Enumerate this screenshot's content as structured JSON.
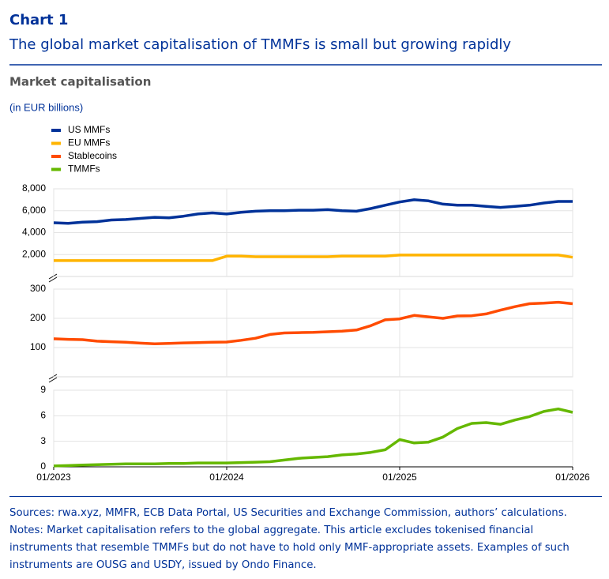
{
  "header": {
    "label": "Chart 1",
    "title": "The global market capitalisation of TMMFs is small but growing rapidly",
    "chart_title": "Market capitalisation",
    "units": "(in EUR billions)"
  },
  "chart_data": [
    {
      "type": "line",
      "grid": true,
      "x": [
        "01/2023",
        "02/2023",
        "03/2023",
        "04/2023",
        "05/2023",
        "06/2023",
        "07/2023",
        "08/2023",
        "09/2023",
        "10/2023",
        "11/2023",
        "12/2023",
        "01/2024",
        "02/2024",
        "03/2024",
        "04/2024",
        "05/2024",
        "06/2024",
        "07/2024",
        "08/2024",
        "09/2024",
        "10/2024",
        "11/2024",
        "12/2024",
        "01/2025",
        "02/2025",
        "03/2025",
        "04/2025",
        "05/2025",
        "06/2025",
        "07/2025",
        "08/2025",
        "09/2025",
        "10/2025",
        "11/2025",
        "12/2025",
        "01/2026"
      ],
      "xticks": [
        "01/2023",
        "01/2024",
        "01/2025",
        "01/2026"
      ],
      "ylim": [
        0,
        8000
      ],
      "yticks": [
        {
          "value": 2000,
          "label": "2,000"
        },
        {
          "value": 4000,
          "label": "4,000"
        },
        {
          "value": 6000,
          "label": "6,000"
        },
        {
          "value": 8000,
          "label": "8,000"
        }
      ],
      "series": [
        {
          "name": "US MMFs",
          "color": "#003299",
          "values": [
            4900,
            4850,
            4950,
            5000,
            5150,
            5200,
            5300,
            5400,
            5350,
            5500,
            5700,
            5800,
            5700,
            5850,
            5950,
            6000,
            6000,
            6050,
            6050,
            6100,
            6000,
            5950,
            6200,
            6500,
            6800,
            7000,
            6900,
            6600,
            6500,
            6500,
            6400,
            6300,
            6400,
            6500,
            6700,
            6850,
            6850
          ]
        },
        {
          "name": "EU MMFs",
          "color": "#ffb400",
          "values": [
            1450,
            1450,
            1450,
            1450,
            1450,
            1450,
            1450,
            1450,
            1450,
            1450,
            1450,
            1450,
            1850,
            1850,
            1800,
            1800,
            1800,
            1800,
            1800,
            1800,
            1850,
            1850,
            1850,
            1850,
            1950,
            1950,
            1950,
            1950,
            1950,
            1950,
            1950,
            1950,
            1950,
            1950,
            1950,
            1950,
            1750
          ]
        }
      ]
    },
    {
      "type": "line",
      "grid": true,
      "x": [
        "01/2023",
        "02/2023",
        "03/2023",
        "04/2023",
        "05/2023",
        "06/2023",
        "07/2023",
        "08/2023",
        "09/2023",
        "10/2023",
        "11/2023",
        "12/2023",
        "01/2024",
        "02/2024",
        "03/2024",
        "04/2024",
        "05/2024",
        "06/2024",
        "07/2024",
        "08/2024",
        "09/2024",
        "10/2024",
        "11/2024",
        "12/2024",
        "01/2025",
        "02/2025",
        "03/2025",
        "04/2025",
        "05/2025",
        "06/2025",
        "07/2025",
        "08/2025",
        "09/2025",
        "10/2025",
        "11/2025",
        "12/2025",
        "01/2026"
      ],
      "xticks": [
        "01/2023",
        "01/2024",
        "01/2025",
        "01/2026"
      ],
      "ylim": [
        0,
        300
      ],
      "yticks": [
        100,
        200,
        300
      ],
      "series": [
        {
          "name": "Stablecoins",
          "color": "#ff4b00",
          "values": [
            130,
            128,
            127,
            122,
            120,
            118,
            115,
            113,
            114,
            116,
            117,
            118,
            119,
            125,
            132,
            145,
            150,
            151,
            152,
            154,
            156,
            160,
            175,
            195,
            198,
            210,
            205,
            200,
            208,
            209,
            215,
            228,
            240,
            250,
            252,
            255,
            250
          ]
        }
      ]
    },
    {
      "type": "line",
      "grid": true,
      "x": [
        "01/2023",
        "02/2023",
        "03/2023",
        "04/2023",
        "05/2023",
        "06/2023",
        "07/2023",
        "08/2023",
        "09/2023",
        "10/2023",
        "11/2023",
        "12/2023",
        "01/2024",
        "02/2024",
        "03/2024",
        "04/2024",
        "05/2024",
        "06/2024",
        "07/2024",
        "08/2024",
        "09/2024",
        "10/2024",
        "11/2024",
        "12/2024",
        "01/2025",
        "02/2025",
        "03/2025",
        "04/2025",
        "05/2025",
        "06/2025",
        "07/2025",
        "08/2025",
        "09/2025",
        "10/2025",
        "11/2025",
        "12/2025",
        "01/2026"
      ],
      "xticks": [
        "01/2023",
        "01/2024",
        "01/2025",
        "01/2026"
      ],
      "ylim": [
        0,
        9
      ],
      "yticks": [
        0,
        3,
        6,
        9
      ],
      "series": [
        {
          "name": "TMMFs",
          "color": "#65b800",
          "values": [
            0.1,
            0.15,
            0.2,
            0.25,
            0.3,
            0.35,
            0.35,
            0.35,
            0.4,
            0.4,
            0.45,
            0.45,
            0.45,
            0.5,
            0.55,
            0.6,
            0.8,
            1.0,
            1.1,
            1.2,
            1.4,
            1.5,
            1.7,
            2.0,
            3.2,
            2.8,
            2.9,
            3.5,
            4.5,
            5.1,
            5.2,
            5.0,
            5.5,
            5.9,
            6.5,
            6.8,
            6.4
          ]
        }
      ]
    }
  ],
  "footer": {
    "sources": "Sources: rwa.xyz, MMFR, ECB Data Portal, US Securities and Exchange Commission, authors’ calculations.",
    "notes": "Notes: Market capitalisation refers to the global aggregate. This article excludes tokenised financial instruments that resemble TMMFs but do not have to hold only MMF-appropriate assets. Examples of such instruments are OUSG and USDY, issued by Ondo Finance."
  }
}
